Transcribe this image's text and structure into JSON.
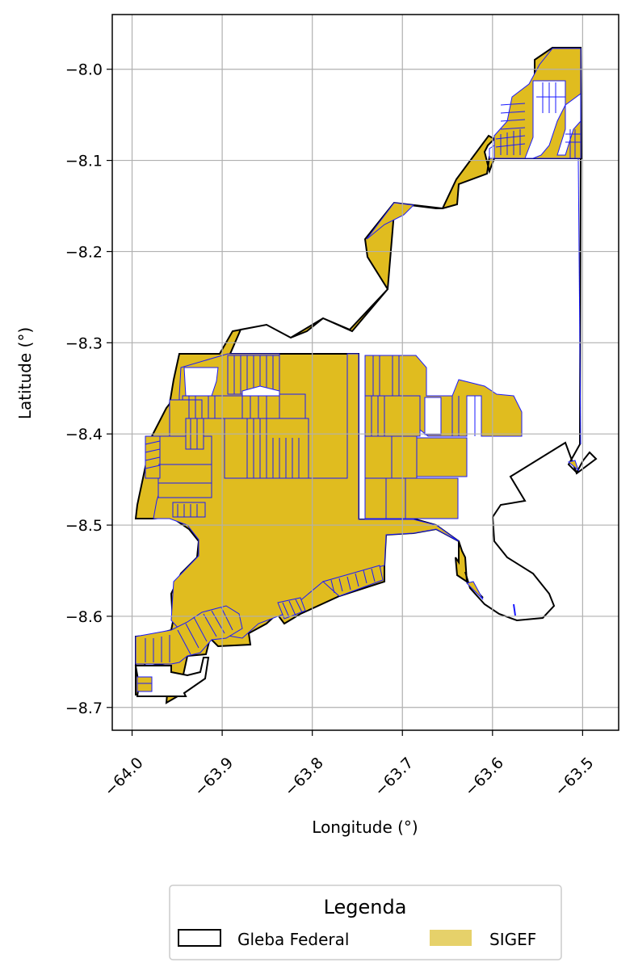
{
  "chart_data": {
    "type": "map",
    "xlabel": "Longitude (°)",
    "ylabel": "Latitude (°)",
    "xlim": [
      -64.022,
      -63.46
    ],
    "ylim": [
      -8.725,
      -7.94
    ],
    "x_ticks": [
      {
        "value": -64.0,
        "label": "−64.0"
      },
      {
        "value": -63.9,
        "label": "−63.9"
      },
      {
        "value": -63.8,
        "label": "−63.8"
      },
      {
        "value": -63.7,
        "label": "−63.7"
      },
      {
        "value": -63.6,
        "label": "−63.6"
      },
      {
        "value": -63.5,
        "label": "−63.5"
      }
    ],
    "y_ticks": [
      {
        "value": -8.0,
        "label": "−8.0"
      },
      {
        "value": -8.1,
        "label": "−8.1"
      },
      {
        "value": -8.2,
        "label": "−8.2"
      },
      {
        "value": -8.3,
        "label": "−8.3"
      },
      {
        "value": -8.4,
        "label": "−8.4"
      },
      {
        "value": -8.5,
        "label": "−8.5"
      },
      {
        "value": -8.6,
        "label": "−8.6"
      },
      {
        "value": -8.7,
        "label": "−8.7"
      }
    ],
    "grid": true,
    "legend": {
      "title": "Legenda",
      "placement": "bottom-center",
      "items": [
        {
          "label": "Gleba Federal",
          "style": "outline",
          "color": "#000000"
        },
        {
          "label": "SIGEF",
          "style": "fill",
          "color": "#e6d16a"
        }
      ]
    },
    "colors": {
      "gleba_outline": "#000000",
      "sigef_fill": "#e0bc1f",
      "sigef_edge": "#1a1aff",
      "grid": "#b0b0b0"
    }
  }
}
